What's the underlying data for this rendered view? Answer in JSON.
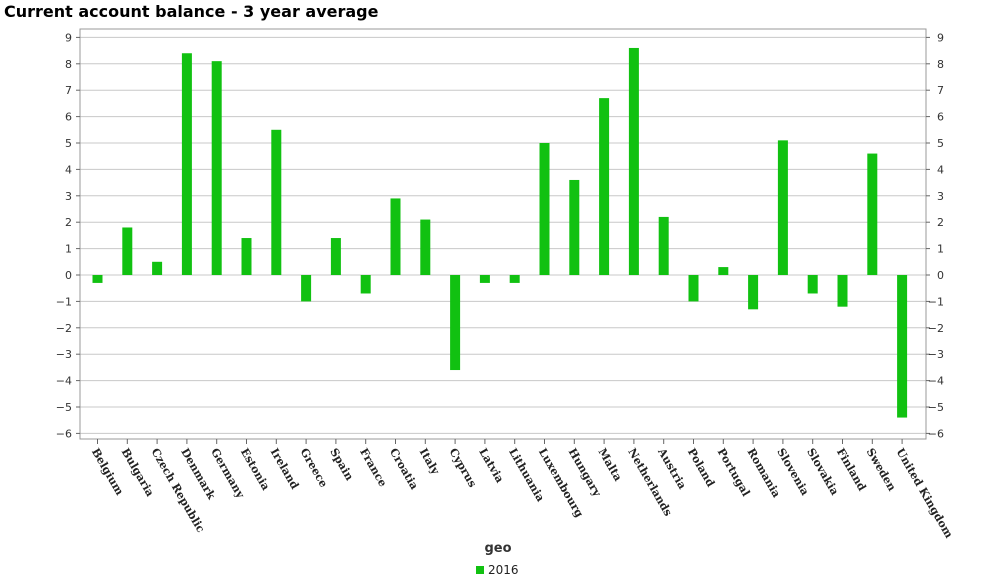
{
  "chart_data": {
    "type": "bar",
    "title": "Current account balance - 3 year average",
    "xlabel": "geo",
    "ylabel": "",
    "ylim": [
      -6,
      9
    ],
    "yticks": [
      9,
      8,
      7,
      6,
      5,
      4,
      3,
      2,
      1,
      0,
      -1,
      -2,
      -3,
      -4,
      -5,
      -6
    ],
    "grid": true,
    "legend_position": "bottom",
    "color": "#11c111",
    "categories": [
      "Belgium",
      "Bulgaria",
      "Czech Republic",
      "Denmark",
      "Germany",
      "Estonia",
      "Ireland",
      "Greece",
      "Spain",
      "France",
      "Croatia",
      "Italy",
      "Cyprus",
      "Latvia",
      "Lithuania",
      "Luxembourg",
      "Hungary",
      "Malta",
      "Netherlands",
      "Austria",
      "Poland",
      "Portugal",
      "Romania",
      "Slovenia",
      "Slovakia",
      "Finland",
      "Sweden",
      "United Kingdom"
    ],
    "series": [
      {
        "name": "2016",
        "values": [
          -0.3,
          1.8,
          0.5,
          8.4,
          8.1,
          1.4,
          5.5,
          -1.0,
          1.4,
          -0.7,
          2.9,
          2.1,
          -3.6,
          -0.3,
          -0.3,
          5.0,
          3.6,
          6.7,
          8.6,
          2.2,
          -1.0,
          0.3,
          -1.3,
          5.1,
          -0.7,
          -1.2,
          4.6,
          -5.4
        ]
      }
    ]
  }
}
